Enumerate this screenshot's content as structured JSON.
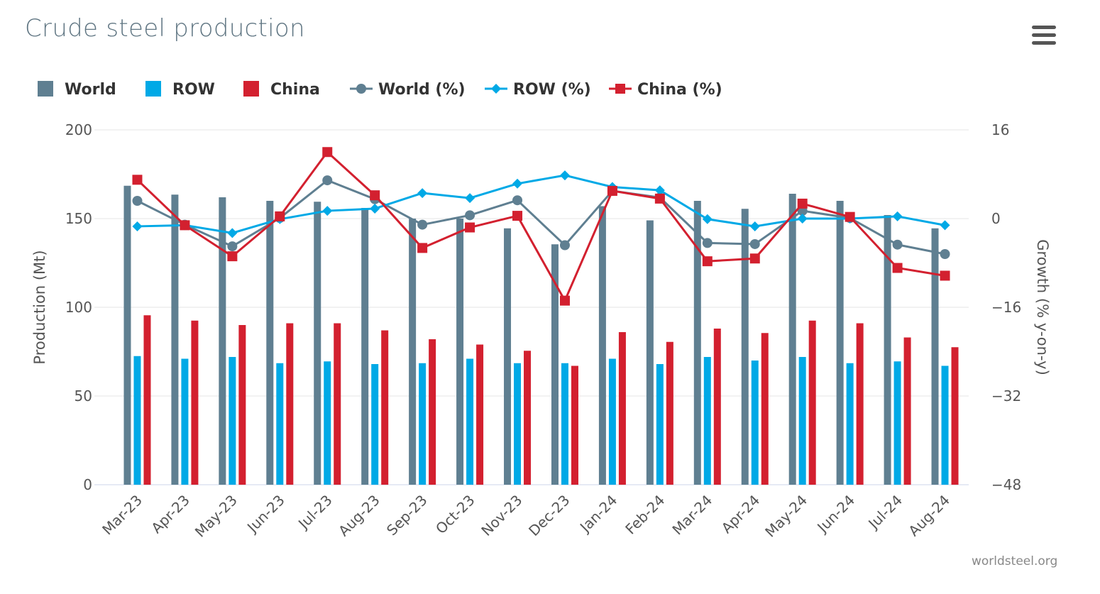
{
  "title": "Crude steel production",
  "credit": "worldsteel.org",
  "colors": {
    "world": "#5f7f91",
    "row": "#00a9e6",
    "china": "#d3202f",
    "grid": "#e6e6e6"
  },
  "chart_data": {
    "type": "bar",
    "title": "Crude steel production",
    "categories": [
      "Mar-23",
      "Apr-23",
      "May-23",
      "Jun-23",
      "Jul-23",
      "Aug-23",
      "Sep-23",
      "Oct-23",
      "Nov-23",
      "Dec-23",
      "Jan-24",
      "Feb-24",
      "Mar-24",
      "Apr-24",
      "May-24",
      "Jun-24",
      "Jul-24",
      "Aug-24"
    ],
    "y_left": {
      "label": "Production (Mt)",
      "range": [
        0,
        200
      ],
      "ticks": [
        0,
        50,
        100,
        150,
        200
      ]
    },
    "y_right": {
      "label": "Growth (% y-on-y)",
      "range": [
        -48,
        16
      ],
      "ticks": [
        -48,
        -32,
        -16,
        0,
        16
      ]
    },
    "grid": true,
    "legend_position": "top-left",
    "series": [
      {
        "name": "World",
        "kind": "bar",
        "axis": "left",
        "color": "#5f7f91",
        "values": [
          168.5,
          163.5,
          162.0,
          160.0,
          159.5,
          156.0,
          150.0,
          150.0,
          144.5,
          135.5,
          157.0,
          149.0,
          160.0,
          155.5,
          164.0,
          160.0,
          152.0,
          144.5
        ]
      },
      {
        "name": "ROW",
        "kind": "bar",
        "axis": "left",
        "color": "#00a9e6",
        "values": [
          72.5,
          71.0,
          72.0,
          68.5,
          69.5,
          68.0,
          68.5,
          71.0,
          68.5,
          68.5,
          71.0,
          68.0,
          72.0,
          70.0,
          72.0,
          68.5,
          69.5,
          67.0
        ]
      },
      {
        "name": "China",
        "kind": "bar",
        "axis": "left",
        "color": "#d3202f",
        "values": [
          95.5,
          92.5,
          90.0,
          91.0,
          91.0,
          87.0,
          82.0,
          79.0,
          75.5,
          67.0,
          86.0,
          80.5,
          88.0,
          85.5,
          92.5,
          91.0,
          83.0,
          77.5
        ]
      },
      {
        "name": "World (%)",
        "kind": "line",
        "axis": "right",
        "marker": "circle",
        "color": "#5f7f91",
        "values": [
          3.2,
          -1.1,
          -5.0,
          0.1,
          6.9,
          3.5,
          -1.1,
          0.6,
          3.3,
          -4.8,
          5.0,
          3.8,
          -4.4,
          -4.6,
          1.4,
          0.1,
          -4.7,
          -6.4
        ]
      },
      {
        "name": "ROW (%)",
        "kind": "line",
        "axis": "right",
        "marker": "diamond",
        "color": "#00a9e6",
        "values": [
          -1.4,
          -1.2,
          -2.6,
          -0.1,
          1.4,
          1.8,
          4.6,
          3.7,
          6.3,
          7.8,
          5.7,
          5.1,
          -0.1,
          -1.4,
          0.0,
          0.0,
          0.4,
          -1.2
        ]
      },
      {
        "name": "China (%)",
        "kind": "line",
        "axis": "right",
        "marker": "square",
        "color": "#d3202f",
        "values": [
          7.0,
          -1.2,
          -6.8,
          0.4,
          12.0,
          4.2,
          -5.3,
          -1.6,
          0.5,
          -14.8,
          5.0,
          3.6,
          -7.7,
          -7.2,
          2.7,
          0.3,
          -8.9,
          -10.3
        ]
      }
    ]
  }
}
